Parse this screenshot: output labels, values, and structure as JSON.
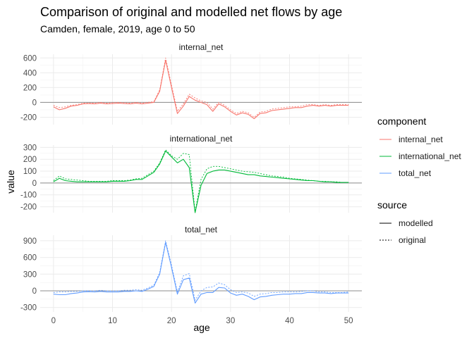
{
  "chart_data": {
    "type": "line",
    "title": "Comparison of original and modelled net flows by age",
    "subtitle": "Camden, female, 2019, age 0 to 50",
    "xlabel": "age",
    "ylabel": "value",
    "xlim": [
      0,
      50
    ],
    "x_ticks": [
      0,
      10,
      20,
      30,
      40,
      50
    ],
    "grid": true,
    "legend_position": "right",
    "x": [
      0,
      1,
      2,
      3,
      4,
      5,
      6,
      7,
      8,
      9,
      10,
      11,
      12,
      13,
      14,
      15,
      16,
      17,
      18,
      19,
      20,
      21,
      22,
      23,
      24,
      25,
      26,
      27,
      28,
      29,
      30,
      31,
      32,
      33,
      34,
      35,
      36,
      37,
      38,
      39,
      40,
      41,
      42,
      43,
      44,
      45,
      46,
      47,
      48,
      49,
      50
    ],
    "panels": [
      {
        "name": "internal_net",
        "color": "#F8766D",
        "ylim": [
          -300,
          650
        ],
        "y_ticks": [
          -200,
          0,
          200,
          400,
          600
        ],
        "y_tick_labels": [
          "-200",
          "0",
          "200",
          "400",
          "600"
        ],
        "series": [
          {
            "source": "modelled",
            "values": [
              -60,
              -100,
              -80,
              -50,
              -40,
              -20,
              -15,
              -20,
              -10,
              -20,
              -15,
              -10,
              -15,
              -20,
              -10,
              -20,
              -10,
              0,
              150,
              570,
              200,
              -150,
              -50,
              80,
              30,
              0,
              -30,
              -120,
              -20,
              -60,
              -120,
              -170,
              -140,
              -160,
              -220,
              -150,
              -140,
              -110,
              -100,
              -90,
              -80,
              -70,
              -70,
              -50,
              -40,
              -50,
              -40,
              -50,
              -40,
              -40,
              -40
            ]
          },
          {
            "source": "original",
            "values": [
              -40,
              -70,
              -60,
              -40,
              -30,
              -10,
              -10,
              -10,
              0,
              -10,
              -5,
              0,
              -5,
              -10,
              0,
              -10,
              0,
              10,
              170,
              600,
              230,
              -120,
              -20,
              110,
              60,
              20,
              0,
              -90,
              0,
              -40,
              -100,
              -150,
              -120,
              -140,
              -200,
              -130,
              -120,
              -90,
              -80,
              -70,
              -60,
              -60,
              -50,
              -30,
              -30,
              -40,
              -30,
              -40,
              -30,
              -30,
              -30
            ]
          }
        ]
      },
      {
        "name": "international_net",
        "color": "#00BA38",
        "ylim": [
          -250,
          320
        ],
        "y_ticks": [
          -200,
          -100,
          0,
          100,
          200,
          300
        ],
        "y_tick_labels": [
          "-200",
          "-100",
          "0",
          "100",
          "200",
          "300"
        ],
        "series": [
          {
            "source": "modelled",
            "values": [
              10,
              40,
              20,
              15,
              10,
              10,
              10,
              10,
              10,
              10,
              15,
              15,
              15,
              20,
              30,
              30,
              60,
              90,
              160,
              270,
              220,
              170,
              200,
              130,
              -250,
              -20,
              80,
              100,
              110,
              110,
              100,
              90,
              80,
              70,
              70,
              60,
              55,
              50,
              45,
              40,
              35,
              30,
              25,
              20,
              20,
              15,
              10,
              10,
              5,
              5,
              5
            ]
          },
          {
            "source": "original",
            "values": [
              20,
              60,
              35,
              30,
              25,
              20,
              15,
              15,
              15,
              15,
              20,
              20,
              20,
              25,
              35,
              40,
              70,
              100,
              170,
              280,
              230,
              200,
              250,
              240,
              -240,
              30,
              120,
              140,
              140,
              130,
              120,
              110,
              100,
              95,
              90,
              80,
              70,
              60,
              55,
              50,
              40,
              35,
              30,
              25,
              20,
              15,
              15,
              10,
              10,
              5,
              5
            ]
          }
        ]
      },
      {
        "name": "total_net",
        "color": "#619CFF",
        "ylim": [
          -380,
          1000
        ],
        "y_ticks": [
          -300,
          0,
          300,
          600,
          900
        ],
        "y_tick_labels": [
          "-300",
          "0",
          "300",
          "600",
          "900"
        ],
        "series": [
          {
            "source": "modelled",
            "values": [
              -60,
              -70,
              -70,
              -50,
              -40,
              -20,
              -15,
              -20,
              -10,
              -20,
              -20,
              -20,
              -10,
              -10,
              0,
              -10,
              30,
              80,
              300,
              870,
              420,
              -60,
              200,
              230,
              -220,
              -60,
              -30,
              -30,
              60,
              50,
              -40,
              -80,
              -60,
              -100,
              -160,
              -110,
              -100,
              -80,
              -70,
              -60,
              -60,
              -50,
              -50,
              -30,
              -30,
              -40,
              -40,
              -50,
              -40,
              -40,
              -40
            ]
          },
          {
            "source": "original",
            "values": [
              -30,
              -20,
              -20,
              -10,
              -10,
              0,
              0,
              0,
              10,
              0,
              0,
              0,
              10,
              10,
              20,
              10,
              50,
              100,
              330,
              900,
              460,
              -20,
              270,
              310,
              -170,
              0,
              60,
              70,
              140,
              110,
              20,
              -30,
              -20,
              -40,
              -100,
              -60,
              -50,
              -30,
              -30,
              -20,
              -20,
              -20,
              -10,
              0,
              0,
              -20,
              -20,
              -30,
              -30,
              -30,
              -20
            ]
          }
        ]
      }
    ],
    "legends": [
      {
        "title": "component",
        "items": [
          {
            "label": "internal_net",
            "color": "#F8766D"
          },
          {
            "label": "international_net",
            "color": "#00BA38"
          },
          {
            "label": "total_net",
            "color": "#619CFF"
          }
        ]
      },
      {
        "title": "source",
        "items": [
          {
            "label": "modelled",
            "dash": "solid"
          },
          {
            "label": "original",
            "dash": "dotted"
          }
        ]
      }
    ]
  }
}
